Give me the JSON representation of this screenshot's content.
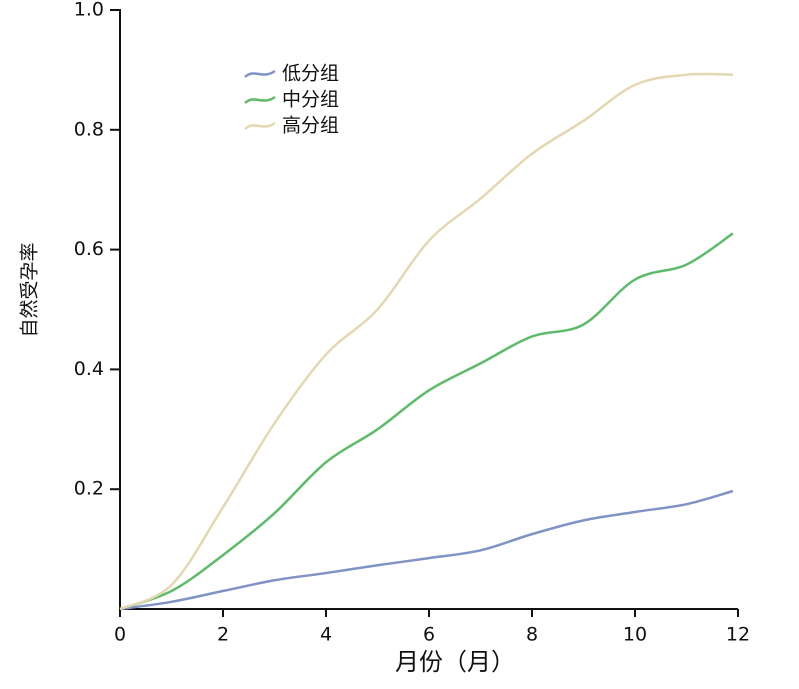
{
  "chart_data": {
    "type": "line",
    "xlabel": "月份（月）",
    "ylabel": "自然受孕率",
    "x": [
      0,
      1,
      2,
      3,
      4,
      5,
      6,
      7,
      8,
      9,
      10,
      11,
      11.9
    ],
    "series": [
      {
        "name": "低分组",
        "color": "#7f93c5",
        "values": [
          0,
          0.012,
          0.03,
          0.048,
          0.06,
          0.073,
          0.085,
          0.098,
          0.125,
          0.148,
          0.162,
          0.175,
          0.197
        ]
      },
      {
        "name": "中分组",
        "color": "#5dbb6a",
        "values": [
          0,
          0.03,
          0.09,
          0.16,
          0.245,
          0.3,
          0.365,
          0.41,
          0.455,
          0.475,
          0.55,
          0.575,
          0.627
        ]
      },
      {
        "name": "高分组",
        "color": "#e3d8b0",
        "values": [
          0,
          0.04,
          0.17,
          0.31,
          0.425,
          0.5,
          0.615,
          0.685,
          0.76,
          0.815,
          0.875,
          0.892,
          0.892
        ]
      }
    ],
    "xlim": [
      0,
      12
    ],
    "xticks": [
      0,
      2,
      4,
      6,
      8,
      10,
      12
    ],
    "ylim": [
      0,
      1
    ],
    "yticks": [
      0.2,
      0.4,
      0.6,
      0.8,
      {
        "value": 1,
        "label": "1.0"
      }
    ],
    "legend": "upper-left"
  }
}
